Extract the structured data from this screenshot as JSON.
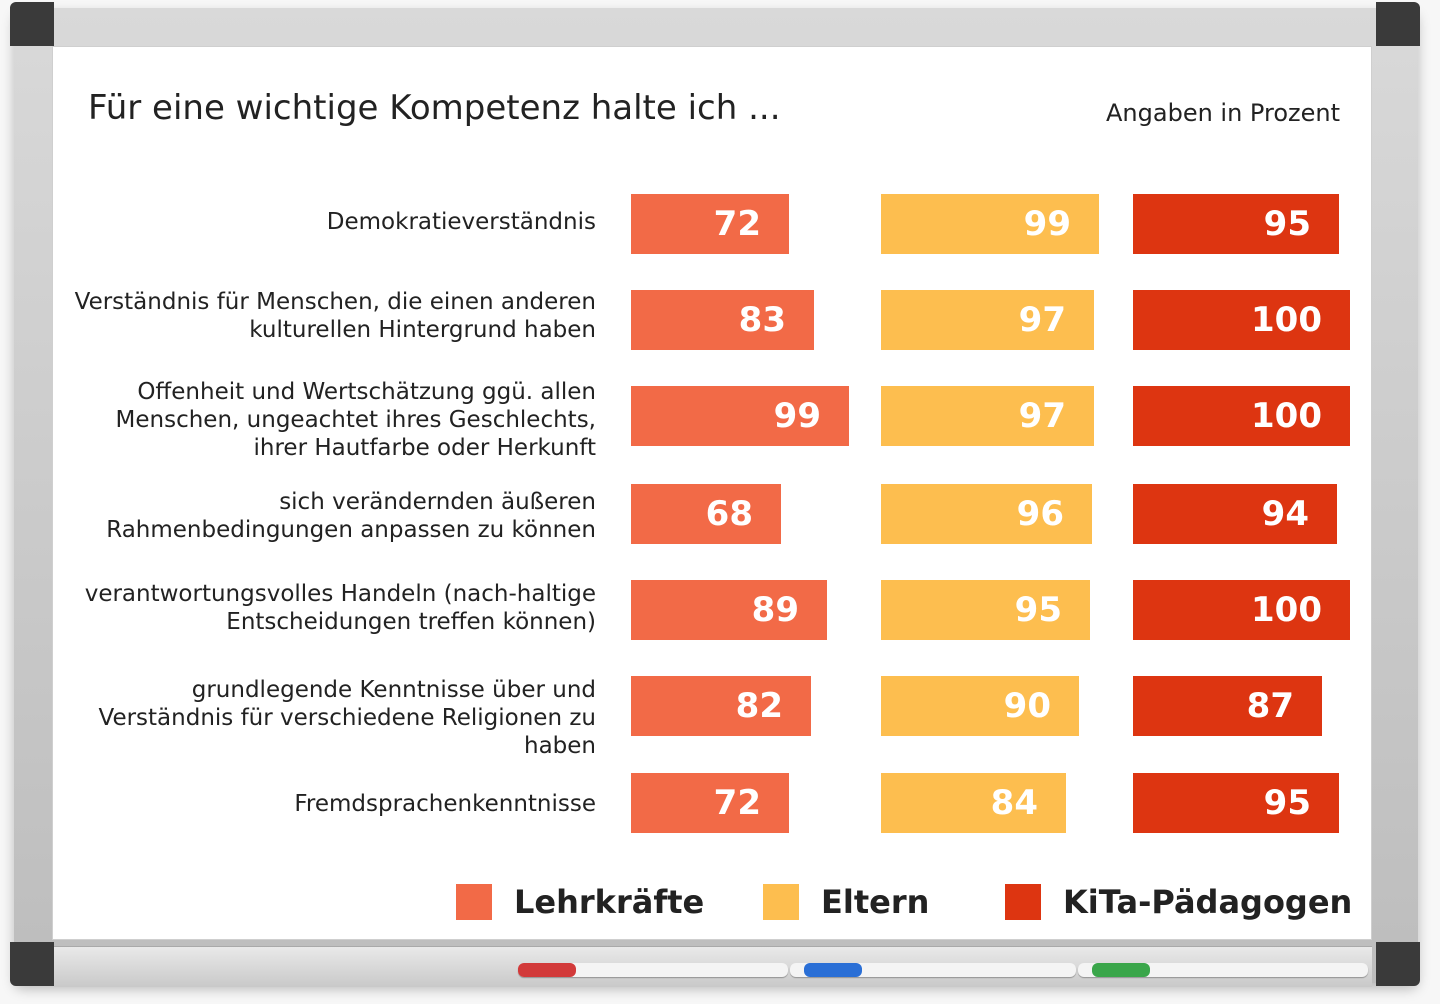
{
  "chart_data": {
    "type": "bar",
    "title": "Für eine wichtige Kompetenz halte ich ...",
    "subtitle": "Angaben in Prozent",
    "categories": [
      "Demokratieverständnis",
      "Verständnis für Menschen, die einen anderen kulturellen Hintergrund haben",
      "Offenheit und Wertschätzung ggü. allen Menschen, ungeachtet ihres Geschlechts, ihrer Hautfarbe oder Herkunft",
      "sich verändernden äußeren Rahmenbedingungen anpassen zu können",
      "verantwortungsvolles Handeln (nach-haltige Entscheidungen treffen können)",
      "grundlegende Kenntnisse über und Verständnis für verschiedene Religionen zu haben",
      "Fremdsprachenkenntnisse"
    ],
    "series": [
      {
        "name": "Lehrkräfte",
        "color": "#f26a47",
        "values": [
          72,
          83,
          99,
          68,
          89,
          82,
          72
        ]
      },
      {
        "name": "Eltern",
        "color": "#fdbe4f",
        "values": [
          99,
          97,
          97,
          96,
          95,
          90,
          84
        ]
      },
      {
        "name": "KiTa-Pädagogen",
        "color": "#dd3511",
        "values": [
          95,
          100,
          100,
          94,
          100,
          87,
          95
        ]
      }
    ],
    "legend": "bottom",
    "grid": false
  }
}
